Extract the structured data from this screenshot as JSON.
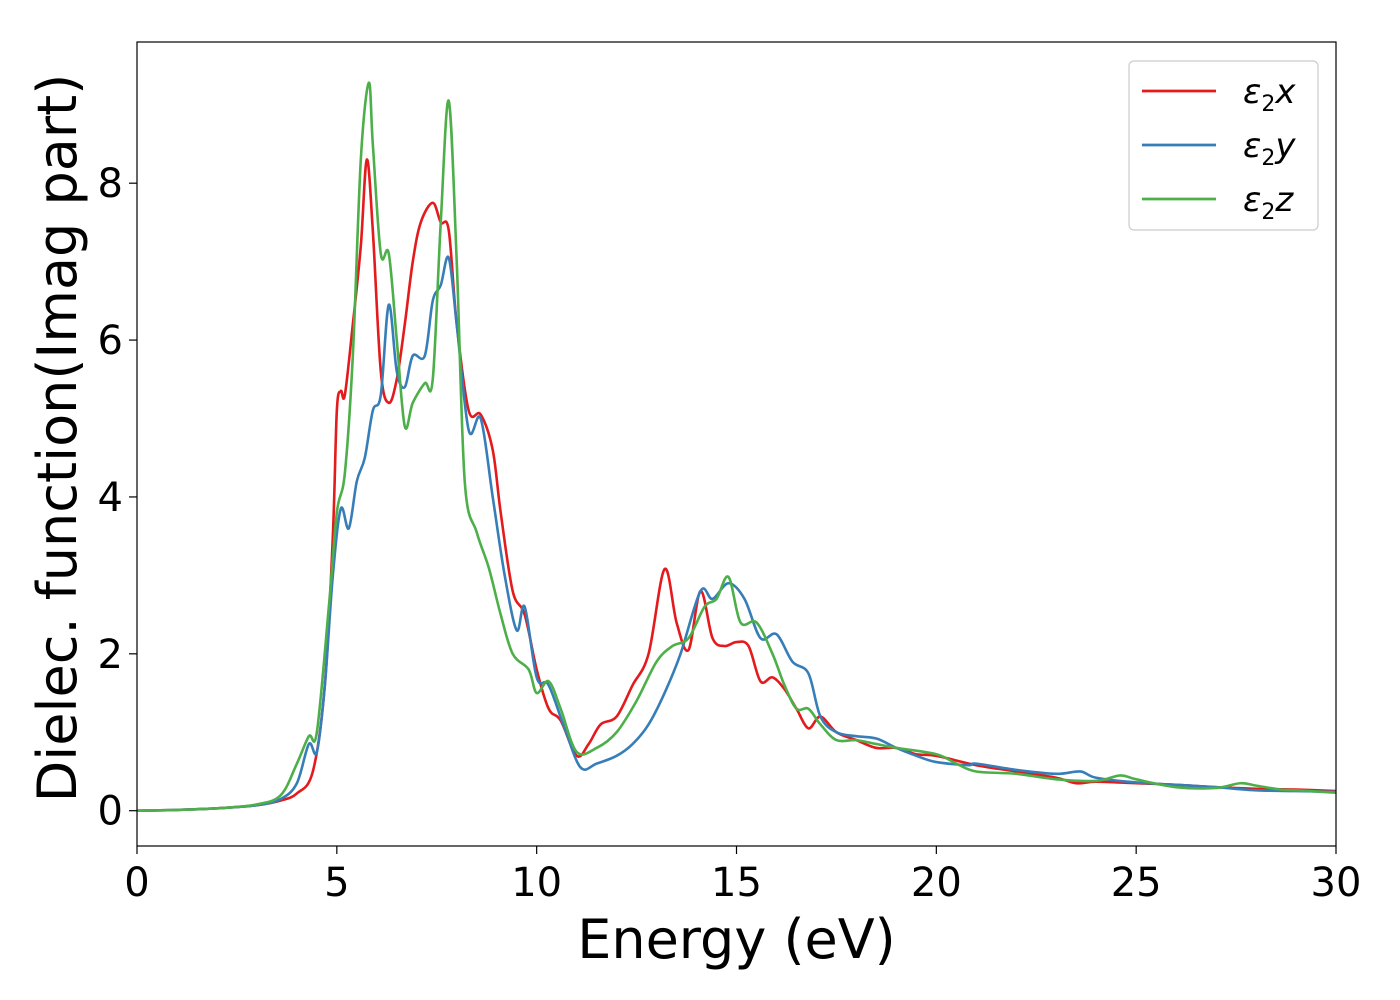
{
  "chart_data": {
    "type": "line",
    "xlabel": "Energy (eV)",
    "ylabel": "Dielec. function(Imag part)",
    "xlim": [
      0,
      30
    ],
    "ylim": [
      -0.45,
      9.8
    ],
    "xticks": [
      0,
      5,
      10,
      15,
      20,
      25,
      30
    ],
    "xtick_labels": [
      "0",
      "5",
      "10",
      "15",
      "20",
      "25",
      "30"
    ],
    "yticks": [
      0,
      2,
      4,
      6,
      8
    ],
    "ytick_labels": [
      "0",
      "2",
      "4",
      "6",
      "8"
    ],
    "grid": false,
    "legend_position": "top-right",
    "series": [
      {
        "name": "ε2x",
        "color": "#e41a1c",
        "points": [
          [
            0,
            0
          ],
          [
            1,
            0.01
          ],
          [
            2,
            0.03
          ],
          [
            3,
            0.07
          ],
          [
            3.6,
            0.13
          ],
          [
            4,
            0.22
          ],
          [
            4.4,
            0.5
          ],
          [
            4.7,
            1.6
          ],
          [
            4.9,
            3.5
          ],
          [
            5.0,
            5.1
          ],
          [
            5.1,
            5.35
          ],
          [
            5.2,
            5.3
          ],
          [
            5.4,
            6.2
          ],
          [
            5.6,
            7.2
          ],
          [
            5.75,
            8.3
          ],
          [
            5.9,
            7.4
          ],
          [
            6.1,
            5.6
          ],
          [
            6.3,
            5.2
          ],
          [
            6.5,
            5.5
          ],
          [
            6.7,
            6.2
          ],
          [
            6.9,
            7.0
          ],
          [
            7.1,
            7.5
          ],
          [
            7.4,
            7.75
          ],
          [
            7.6,
            7.5
          ],
          [
            7.8,
            7.4
          ],
          [
            8.0,
            6.2
          ],
          [
            8.3,
            5.1
          ],
          [
            8.6,
            5.05
          ],
          [
            8.9,
            4.6
          ],
          [
            9.1,
            3.8
          ],
          [
            9.4,
            2.8
          ],
          [
            9.7,
            2.5
          ],
          [
            10.0,
            1.8
          ],
          [
            10.3,
            1.3
          ],
          [
            10.6,
            1.15
          ],
          [
            11.0,
            0.7
          ],
          [
            11.3,
            0.85
          ],
          [
            11.6,
            1.1
          ],
          [
            12.0,
            1.2
          ],
          [
            12.4,
            1.6
          ],
          [
            12.8,
            2.0
          ],
          [
            13.2,
            3.08
          ],
          [
            13.5,
            2.4
          ],
          [
            13.8,
            2.05
          ],
          [
            14.1,
            2.8
          ],
          [
            14.4,
            2.2
          ],
          [
            14.7,
            2.1
          ],
          [
            15.0,
            2.15
          ],
          [
            15.3,
            2.1
          ],
          [
            15.6,
            1.65
          ],
          [
            15.9,
            1.7
          ],
          [
            16.2,
            1.55
          ],
          [
            16.5,
            1.3
          ],
          [
            16.8,
            1.05
          ],
          [
            17.1,
            1.2
          ],
          [
            17.5,
            1.0
          ],
          [
            18.0,
            0.9
          ],
          [
            18.5,
            0.8
          ],
          [
            19.0,
            0.8
          ],
          [
            19.5,
            0.72
          ],
          [
            20,
            0.7
          ],
          [
            21,
            0.58
          ],
          [
            22,
            0.5
          ],
          [
            23,
            0.42
          ],
          [
            23.5,
            0.35
          ],
          [
            24,
            0.37
          ],
          [
            25,
            0.35
          ],
          [
            26,
            0.33
          ],
          [
            27,
            0.3
          ],
          [
            28,
            0.28
          ],
          [
            29,
            0.27
          ],
          [
            30,
            0.25
          ]
        ]
      },
      {
        "name": "ε2y",
        "color": "#377eb8",
        "points": [
          [
            0,
            0
          ],
          [
            1,
            0.01
          ],
          [
            2,
            0.03
          ],
          [
            3,
            0.07
          ],
          [
            3.6,
            0.15
          ],
          [
            4,
            0.35
          ],
          [
            4.3,
            0.85
          ],
          [
            4.5,
            0.75
          ],
          [
            4.7,
            1.6
          ],
          [
            4.9,
            3.0
          ],
          [
            5.1,
            3.85
          ],
          [
            5.3,
            3.6
          ],
          [
            5.5,
            4.2
          ],
          [
            5.7,
            4.5
          ],
          [
            5.9,
            5.1
          ],
          [
            6.1,
            5.3
          ],
          [
            6.3,
            6.45
          ],
          [
            6.5,
            5.6
          ],
          [
            6.7,
            5.4
          ],
          [
            6.9,
            5.8
          ],
          [
            7.2,
            5.8
          ],
          [
            7.4,
            6.5
          ],
          [
            7.6,
            6.7
          ],
          [
            7.8,
            7.05
          ],
          [
            8.0,
            6.2
          ],
          [
            8.3,
            4.85
          ],
          [
            8.6,
            5.0
          ],
          [
            8.9,
            4.0
          ],
          [
            9.2,
            3.0
          ],
          [
            9.5,
            2.3
          ],
          [
            9.7,
            2.6
          ],
          [
            10.0,
            1.7
          ],
          [
            10.3,
            1.6
          ],
          [
            10.7,
            1.05
          ],
          [
            11.1,
            0.55
          ],
          [
            11.5,
            0.6
          ],
          [
            12.0,
            0.7
          ],
          [
            12.4,
            0.85
          ],
          [
            12.8,
            1.1
          ],
          [
            13.2,
            1.5
          ],
          [
            13.6,
            2.0
          ],
          [
            14.1,
            2.8
          ],
          [
            14.4,
            2.7
          ],
          [
            14.8,
            2.9
          ],
          [
            15.2,
            2.7
          ],
          [
            15.6,
            2.2
          ],
          [
            16.0,
            2.25
          ],
          [
            16.4,
            1.9
          ],
          [
            16.8,
            1.75
          ],
          [
            17.1,
            1.2
          ],
          [
            17.5,
            1.0
          ],
          [
            18,
            0.95
          ],
          [
            18.5,
            0.92
          ],
          [
            19,
            0.8
          ],
          [
            19.5,
            0.7
          ],
          [
            20,
            0.62
          ],
          [
            20.8,
            0.58
          ],
          [
            21,
            0.6
          ],
          [
            22,
            0.52
          ],
          [
            23,
            0.47
          ],
          [
            23.6,
            0.5
          ],
          [
            24,
            0.42
          ],
          [
            25,
            0.36
          ],
          [
            26,
            0.33
          ],
          [
            27,
            0.3
          ],
          [
            28,
            0.26
          ],
          [
            29,
            0.25
          ],
          [
            30,
            0.24
          ]
        ]
      },
      {
        "name": "ε2z",
        "color": "#4daf4a",
        "points": [
          [
            0,
            0
          ],
          [
            1,
            0.01
          ],
          [
            2,
            0.03
          ],
          [
            3,
            0.08
          ],
          [
            3.6,
            0.2
          ],
          [
            4,
            0.6
          ],
          [
            4.3,
            0.95
          ],
          [
            4.5,
            1.0
          ],
          [
            4.8,
            2.6
          ],
          [
            5.0,
            3.8
          ],
          [
            5.2,
            4.3
          ],
          [
            5.4,
            5.8
          ],
          [
            5.6,
            8.3
          ],
          [
            5.8,
            9.28
          ],
          [
            5.9,
            8.5
          ],
          [
            6.1,
            7.1
          ],
          [
            6.3,
            7.1
          ],
          [
            6.5,
            6.0
          ],
          [
            6.7,
            4.9
          ],
          [
            6.9,
            5.2
          ],
          [
            7.2,
            5.45
          ],
          [
            7.4,
            5.5
          ],
          [
            7.6,
            7.5
          ],
          [
            7.8,
            9.05
          ],
          [
            8.0,
            7.0
          ],
          [
            8.2,
            4.2
          ],
          [
            8.5,
            3.55
          ],
          [
            8.8,
            3.1
          ],
          [
            9.1,
            2.5
          ],
          [
            9.4,
            2.0
          ],
          [
            9.8,
            1.8
          ],
          [
            10.0,
            1.5
          ],
          [
            10.3,
            1.65
          ],
          [
            10.6,
            1.3
          ],
          [
            11.0,
            0.75
          ],
          [
            11.5,
            0.8
          ],
          [
            12.0,
            1.0
          ],
          [
            12.5,
            1.4
          ],
          [
            13.0,
            1.9
          ],
          [
            13.4,
            2.1
          ],
          [
            13.8,
            2.2
          ],
          [
            14.2,
            2.6
          ],
          [
            14.5,
            2.7
          ],
          [
            14.8,
            2.98
          ],
          [
            15.1,
            2.4
          ],
          [
            15.5,
            2.4
          ],
          [
            15.9,
            2.0
          ],
          [
            16.2,
            1.6
          ],
          [
            16.5,
            1.3
          ],
          [
            16.8,
            1.3
          ],
          [
            17.1,
            1.1
          ],
          [
            17.5,
            0.9
          ],
          [
            18,
            0.9
          ],
          [
            18.5,
            0.85
          ],
          [
            19,
            0.8
          ],
          [
            20,
            0.72
          ],
          [
            20.5,
            0.6
          ],
          [
            21,
            0.5
          ],
          [
            22,
            0.47
          ],
          [
            23,
            0.4
          ],
          [
            24,
            0.38
          ],
          [
            24.6,
            0.45
          ],
          [
            25,
            0.4
          ],
          [
            26,
            0.3
          ],
          [
            27,
            0.29
          ],
          [
            27.6,
            0.35
          ],
          [
            28,
            0.32
          ],
          [
            28.6,
            0.27
          ],
          [
            29,
            0.26
          ],
          [
            30,
            0.23
          ]
        ]
      }
    ]
  }
}
